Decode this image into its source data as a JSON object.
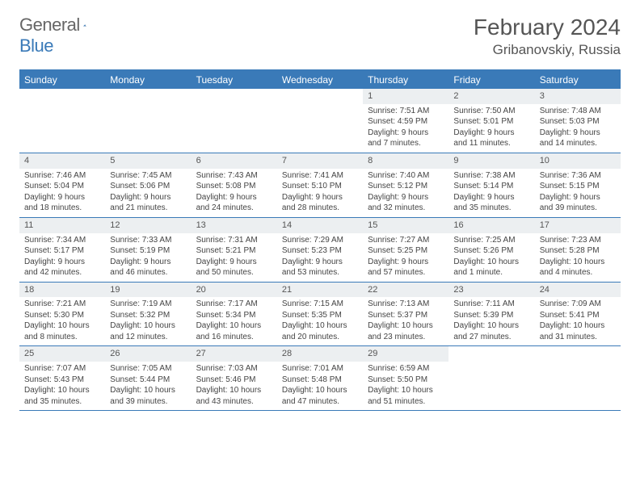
{
  "logo": {
    "text1": "General",
    "text2": "Blue"
  },
  "title": "February 2024",
  "location": "Gribanovskiy, Russia",
  "colors": {
    "header_bar": "#3a7ab8",
    "daynum_bg": "#eceff1",
    "text": "#444444",
    "title_text": "#555555",
    "border": "#3a7ab8"
  },
  "day_headers": [
    "Sunday",
    "Monday",
    "Tuesday",
    "Wednesday",
    "Thursday",
    "Friday",
    "Saturday"
  ],
  "weeks": [
    [
      null,
      null,
      null,
      null,
      {
        "n": "1",
        "sr": "Sunrise: 7:51 AM",
        "ss": "Sunset: 4:59 PM",
        "d1": "Daylight: 9 hours",
        "d2": "and 7 minutes."
      },
      {
        "n": "2",
        "sr": "Sunrise: 7:50 AM",
        "ss": "Sunset: 5:01 PM",
        "d1": "Daylight: 9 hours",
        "d2": "and 11 minutes."
      },
      {
        "n": "3",
        "sr": "Sunrise: 7:48 AM",
        "ss": "Sunset: 5:03 PM",
        "d1": "Daylight: 9 hours",
        "d2": "and 14 minutes."
      }
    ],
    [
      {
        "n": "4",
        "sr": "Sunrise: 7:46 AM",
        "ss": "Sunset: 5:04 PM",
        "d1": "Daylight: 9 hours",
        "d2": "and 18 minutes."
      },
      {
        "n": "5",
        "sr": "Sunrise: 7:45 AM",
        "ss": "Sunset: 5:06 PM",
        "d1": "Daylight: 9 hours",
        "d2": "and 21 minutes."
      },
      {
        "n": "6",
        "sr": "Sunrise: 7:43 AM",
        "ss": "Sunset: 5:08 PM",
        "d1": "Daylight: 9 hours",
        "d2": "and 24 minutes."
      },
      {
        "n": "7",
        "sr": "Sunrise: 7:41 AM",
        "ss": "Sunset: 5:10 PM",
        "d1": "Daylight: 9 hours",
        "d2": "and 28 minutes."
      },
      {
        "n": "8",
        "sr": "Sunrise: 7:40 AM",
        "ss": "Sunset: 5:12 PM",
        "d1": "Daylight: 9 hours",
        "d2": "and 32 minutes."
      },
      {
        "n": "9",
        "sr": "Sunrise: 7:38 AM",
        "ss": "Sunset: 5:14 PM",
        "d1": "Daylight: 9 hours",
        "d2": "and 35 minutes."
      },
      {
        "n": "10",
        "sr": "Sunrise: 7:36 AM",
        "ss": "Sunset: 5:15 PM",
        "d1": "Daylight: 9 hours",
        "d2": "and 39 minutes."
      }
    ],
    [
      {
        "n": "11",
        "sr": "Sunrise: 7:34 AM",
        "ss": "Sunset: 5:17 PM",
        "d1": "Daylight: 9 hours",
        "d2": "and 42 minutes."
      },
      {
        "n": "12",
        "sr": "Sunrise: 7:33 AM",
        "ss": "Sunset: 5:19 PM",
        "d1": "Daylight: 9 hours",
        "d2": "and 46 minutes."
      },
      {
        "n": "13",
        "sr": "Sunrise: 7:31 AM",
        "ss": "Sunset: 5:21 PM",
        "d1": "Daylight: 9 hours",
        "d2": "and 50 minutes."
      },
      {
        "n": "14",
        "sr": "Sunrise: 7:29 AM",
        "ss": "Sunset: 5:23 PM",
        "d1": "Daylight: 9 hours",
        "d2": "and 53 minutes."
      },
      {
        "n": "15",
        "sr": "Sunrise: 7:27 AM",
        "ss": "Sunset: 5:25 PM",
        "d1": "Daylight: 9 hours",
        "d2": "and 57 minutes."
      },
      {
        "n": "16",
        "sr": "Sunrise: 7:25 AM",
        "ss": "Sunset: 5:26 PM",
        "d1": "Daylight: 10 hours",
        "d2": "and 1 minute."
      },
      {
        "n": "17",
        "sr": "Sunrise: 7:23 AM",
        "ss": "Sunset: 5:28 PM",
        "d1": "Daylight: 10 hours",
        "d2": "and 4 minutes."
      }
    ],
    [
      {
        "n": "18",
        "sr": "Sunrise: 7:21 AM",
        "ss": "Sunset: 5:30 PM",
        "d1": "Daylight: 10 hours",
        "d2": "and 8 minutes."
      },
      {
        "n": "19",
        "sr": "Sunrise: 7:19 AM",
        "ss": "Sunset: 5:32 PM",
        "d1": "Daylight: 10 hours",
        "d2": "and 12 minutes."
      },
      {
        "n": "20",
        "sr": "Sunrise: 7:17 AM",
        "ss": "Sunset: 5:34 PM",
        "d1": "Daylight: 10 hours",
        "d2": "and 16 minutes."
      },
      {
        "n": "21",
        "sr": "Sunrise: 7:15 AM",
        "ss": "Sunset: 5:35 PM",
        "d1": "Daylight: 10 hours",
        "d2": "and 20 minutes."
      },
      {
        "n": "22",
        "sr": "Sunrise: 7:13 AM",
        "ss": "Sunset: 5:37 PM",
        "d1": "Daylight: 10 hours",
        "d2": "and 23 minutes."
      },
      {
        "n": "23",
        "sr": "Sunrise: 7:11 AM",
        "ss": "Sunset: 5:39 PM",
        "d1": "Daylight: 10 hours",
        "d2": "and 27 minutes."
      },
      {
        "n": "24",
        "sr": "Sunrise: 7:09 AM",
        "ss": "Sunset: 5:41 PM",
        "d1": "Daylight: 10 hours",
        "d2": "and 31 minutes."
      }
    ],
    [
      {
        "n": "25",
        "sr": "Sunrise: 7:07 AM",
        "ss": "Sunset: 5:43 PM",
        "d1": "Daylight: 10 hours",
        "d2": "and 35 minutes."
      },
      {
        "n": "26",
        "sr": "Sunrise: 7:05 AM",
        "ss": "Sunset: 5:44 PM",
        "d1": "Daylight: 10 hours",
        "d2": "and 39 minutes."
      },
      {
        "n": "27",
        "sr": "Sunrise: 7:03 AM",
        "ss": "Sunset: 5:46 PM",
        "d1": "Daylight: 10 hours",
        "d2": "and 43 minutes."
      },
      {
        "n": "28",
        "sr": "Sunrise: 7:01 AM",
        "ss": "Sunset: 5:48 PM",
        "d1": "Daylight: 10 hours",
        "d2": "and 47 minutes."
      },
      {
        "n": "29",
        "sr": "Sunrise: 6:59 AM",
        "ss": "Sunset: 5:50 PM",
        "d1": "Daylight: 10 hours",
        "d2": "and 51 minutes."
      },
      null,
      null
    ]
  ]
}
